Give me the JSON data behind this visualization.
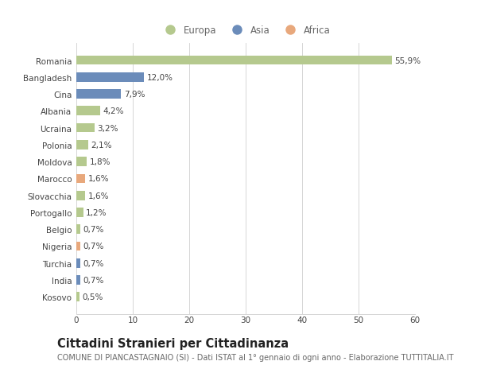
{
  "countries": [
    "Romania",
    "Bangladesh",
    "Cina",
    "Albania",
    "Ucraina",
    "Polonia",
    "Moldova",
    "Marocco",
    "Slovacchia",
    "Portogallo",
    "Belgio",
    "Nigeria",
    "Turchia",
    "India",
    "Kosovo"
  ],
  "values": [
    55.9,
    12.0,
    7.9,
    4.2,
    3.2,
    2.1,
    1.8,
    1.6,
    1.6,
    1.2,
    0.7,
    0.7,
    0.7,
    0.7,
    0.5
  ],
  "labels": [
    "55,9%",
    "12,0%",
    "7,9%",
    "4,2%",
    "3,2%",
    "2,1%",
    "1,8%",
    "1,6%",
    "1,6%",
    "1,2%",
    "0,7%",
    "0,7%",
    "0,7%",
    "0,7%",
    "0,5%"
  ],
  "continents": [
    "Europa",
    "Asia",
    "Asia",
    "Europa",
    "Europa",
    "Europa",
    "Europa",
    "Africa",
    "Europa",
    "Europa",
    "Europa",
    "Africa",
    "Asia",
    "Asia",
    "Europa"
  ],
  "colors": {
    "Europa": "#b5c98e",
    "Asia": "#6b8cba",
    "Africa": "#e8a87c"
  },
  "xlim": [
    0,
    60
  ],
  "xticks": [
    0,
    10,
    20,
    30,
    40,
    50,
    60
  ],
  "title": "Cittadini Stranieri per Cittadinanza",
  "subtitle": "COMUNE DI PIANCASTAGNAIO (SI) - Dati ISTAT al 1° gennaio di ogni anno - Elaborazione TUTTITALIA.IT",
  "background_color": "#ffffff",
  "grid_color": "#d0d0d0",
  "bar_height": 0.55,
  "label_fontsize": 7.5,
  "title_fontsize": 10.5,
  "subtitle_fontsize": 7.0,
  "tick_fontsize": 7.5,
  "legend_fontsize": 8.5
}
